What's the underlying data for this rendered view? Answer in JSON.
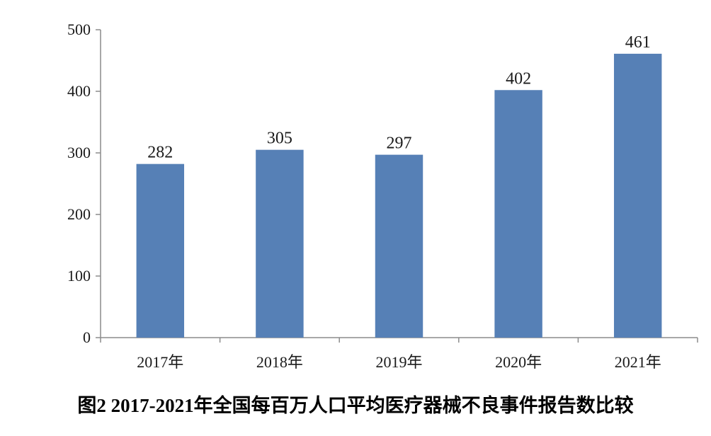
{
  "chart_data": {
    "type": "bar",
    "categories": [
      "2017年",
      "2018年",
      "2019年",
      "2020年",
      "2021年"
    ],
    "values": [
      282,
      305,
      297,
      402,
      461
    ],
    "title": "图2  2017-2021年全国每百万人口平均医疗器械不良事件报告数比较",
    "xlabel": "",
    "ylabel": "",
    "ylim": [
      0,
      500
    ],
    "yticks": [
      0,
      100,
      200,
      300,
      400,
      500
    ],
    "grid": false,
    "legend": "none",
    "bar_color": "#5680b6",
    "data_labels": true
  }
}
